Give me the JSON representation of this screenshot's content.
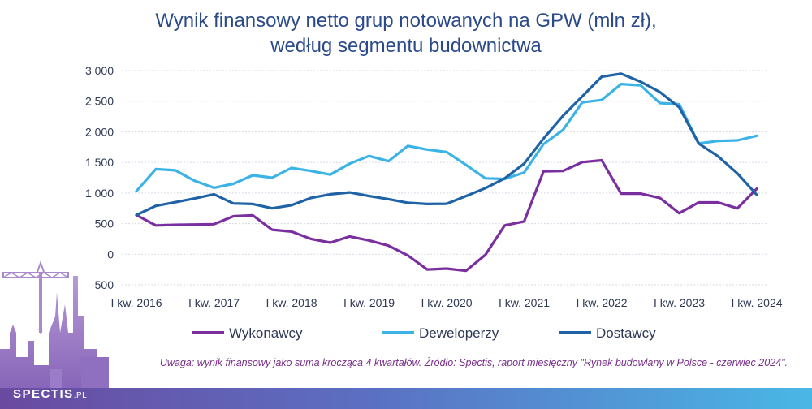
{
  "title_line1": "Wynik finansowy netto grup notowanych na GPW (mln zł),",
  "title_line2": "według segmentu budownictwa",
  "note": "Uwaga: wynik finansowy jako suma krocząca 4 kwartałów. Źródło: Spectis, raport miesięczny \"Rynek budowlany w Polsce - czerwiec 2024\".",
  "brand": "SPECTIS",
  "brand_suffix": ".PL",
  "colors": {
    "wykonawcy": "#7b2f9e",
    "deweloperzy": "#3bb3e6",
    "dostawcy": "#1f63a6"
  },
  "chart_data": {
    "type": "line",
    "title": "Wynik finansowy netto grup notowanych na GPW (mln zł), według segmentu budownictwa",
    "x": [
      "I kw. 2016",
      "II kw. 2016",
      "III kw. 2016",
      "IV kw. 2016",
      "I kw. 2017",
      "II kw. 2017",
      "III kw. 2017",
      "IV kw. 2017",
      "I kw. 2018",
      "II kw. 2018",
      "III kw. 2018",
      "IV kw. 2018",
      "I kw. 2019",
      "II kw. 2019",
      "III kw. 2019",
      "IV kw. 2019",
      "I kw. 2020",
      "II kw. 2020",
      "III kw. 2020",
      "IV kw. 2020",
      "I kw. 2021",
      "II kw. 2021",
      "III kw. 2021",
      "IV kw. 2021",
      "I kw. 2022",
      "II kw. 2022",
      "III kw. 2022",
      "IV kw. 2022",
      "I kw. 2023",
      "II kw. 2023",
      "III kw. 2023",
      "IV kw. 2023",
      "I kw. 2024"
    ],
    "xticks": [
      "I kw. 2016",
      "I kw. 2017",
      "I kw. 2018",
      "I kw. 2019",
      "I kw. 2020",
      "I kw. 2021",
      "I kw. 2022",
      "I kw. 2023",
      "I kw. 2024"
    ],
    "yticks": [
      "3 000",
      "2 500",
      "2 000",
      "1 500",
      "1 000",
      "500",
      "0",
      "-500"
    ],
    "ylim": [
      -500,
      3000
    ],
    "grid": true,
    "legend_position": "bottom",
    "series": [
      {
        "name": "Wykonawcy",
        "values": [
          640,
          470,
          480,
          485,
          490,
          620,
          635,
          400,
          370,
          250,
          190,
          290,
          225,
          140,
          -20,
          -250,
          -235,
          -270,
          -10,
          470,
          535,
          1355,
          1360,
          1505,
          1535,
          990,
          990,
          920,
          670,
          845,
          845,
          750,
          1070
        ]
      },
      {
        "name": "Deweloperzy",
        "values": [
          1030,
          1390,
          1370,
          1200,
          1085,
          1150,
          1290,
          1250,
          1410,
          1360,
          1300,
          1480,
          1605,
          1520,
          1770,
          1710,
          1670,
          1460,
          1240,
          1230,
          1335,
          1800,
          2030,
          2480,
          2520,
          2780,
          2760,
          2470,
          2450,
          1810,
          1850,
          1860,
          1935
        ]
      },
      {
        "name": "Dostawcy",
        "values": [
          640,
          790,
          850,
          910,
          980,
          830,
          820,
          750,
          800,
          920,
          980,
          1010,
          950,
          900,
          840,
          820,
          825,
          950,
          1080,
          1240,
          1480,
          1890,
          2260,
          2580,
          2900,
          2950,
          2820,
          2650,
          2400,
          1810,
          1600,
          1320,
          970
        ]
      }
    ]
  }
}
